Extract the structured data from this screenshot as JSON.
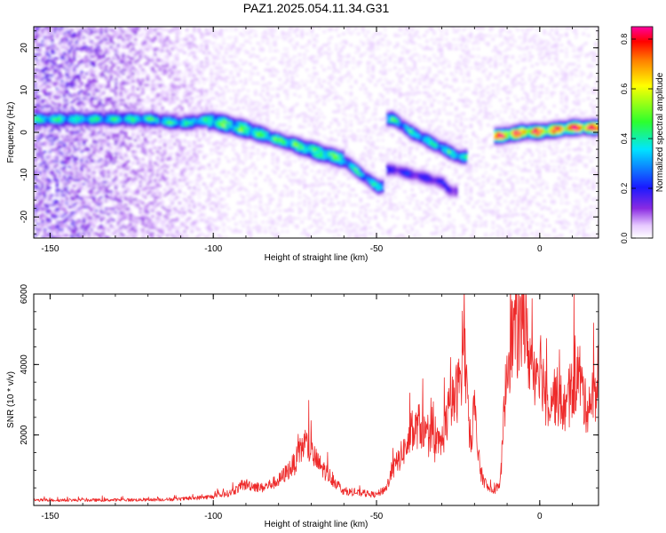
{
  "figure_title": "PAZ1.2025.054.11.34.G31",
  "colors": {
    "snr_line": "#ee2a2a",
    "axis": "#000000"
  },
  "chart_data": [
    {
      "type": "heatmap",
      "title": "PAZ1.2025.054.11.34.G31",
      "xlabel": "Height of straight line (km)",
      "ylabel": "Frequency (Hz)",
      "xlim": [
        -155,
        18
      ],
      "ylim": [
        -25,
        25
      ],
      "x_ticks": [
        -150,
        -100,
        -50,
        0
      ],
      "x_tick_labels": [
        "-150",
        "-100",
        "-50",
        "0"
      ],
      "y_ticks": [
        -20,
        -10,
        0,
        10,
        20
      ],
      "y_tick_labels": [
        "-20",
        "-10",
        "0",
        "10",
        "20"
      ],
      "colorbar": {
        "label": "Normalized spectral amplitude",
        "range": [
          0,
          0.85
        ],
        "ticks": [
          0,
          0.2,
          0.4,
          0.6,
          0.8
        ],
        "tick_labels": [
          "0.0",
          "0.2",
          "0.4",
          "0.6",
          "0.8"
        ],
        "colormap": "rainbow (white-purple-blue-cyan-green-yellow-red-magenta)"
      },
      "ridges": [
        {
          "x": [
            -155,
            -120,
            -110,
            -100,
            -90,
            -80,
            -70,
            -60,
            -55,
            -50
          ],
          "y": [
            3,
            3,
            2,
            3,
            1,
            -2,
            -5,
            -7,
            -10,
            -13
          ],
          "peak": 0.45
        },
        {
          "x": [
            -45,
            -40,
            -35,
            -30,
            -25
          ],
          "y": [
            3,
            0,
            -2,
            -4,
            -6
          ],
          "peak": 0.45
        },
        {
          "x": [
            -45,
            -40,
            -35,
            -30,
            -28
          ],
          "y": [
            -9,
            -10,
            -11,
            -12,
            -14
          ],
          "peak": 0.22
        },
        {
          "x": [
            -12,
            -5,
            0,
            5,
            10,
            18
          ],
          "y": [
            -1,
            0,
            0,
            0.5,
            1,
            1
          ],
          "peak": 0.85
        },
        {
          "x": [
            -100,
            -90,
            -80,
            -70,
            -62
          ],
          "y": [
            2,
            0,
            -2,
            -4,
            -6
          ],
          "peak": 0.5
        }
      ],
      "grid": false
    },
    {
      "type": "line",
      "xlabel": "Height of straight line (km)",
      "ylabel": "SNR (10 * v/v)",
      "xlim": [
        -155,
        18
      ],
      "ylim": [
        0,
        6000
      ],
      "x_ticks": [
        -150,
        -100,
        -50,
        0
      ],
      "x_tick_labels": [
        "-150",
        "-100",
        "-50",
        "0"
      ],
      "y_ticks": [
        2000,
        4000,
        6000
      ],
      "y_tick_labels": [
        "2000",
        "4000",
        "6000"
      ],
      "series": [
        {
          "color": "#ee2a2a",
          "x": [
            -155,
            -140,
            -120,
            -110,
            -100,
            -95,
            -90,
            -85,
            -80,
            -75,
            -72,
            -70,
            -68,
            -65,
            -62,
            -60,
            -55,
            -50,
            -47,
            -45,
            -42,
            -40,
            -37,
            -35,
            -32,
            -30,
            -28,
            -25,
            -23,
            -22,
            -21,
            -20,
            -19,
            -18,
            -16,
            -14,
            -12,
            -11,
            -10,
            -8,
            -6,
            -5,
            -4,
            -2,
            0,
            2,
            4,
            6,
            8,
            10,
            12,
            14,
            16,
            18
          ],
          "y": [
            150,
            150,
            160,
            180,
            250,
            350,
            600,
            500,
            700,
            1200,
            1800,
            1500,
            1200,
            900,
            600,
            400,
            350,
            300,
            500,
            1000,
            1500,
            1800,
            2300,
            2000,
            1600,
            1800,
            2600,
            3300,
            4500,
            2500,
            2000,
            2800,
            1500,
            900,
            500,
            400,
            700,
            2500,
            4000,
            5000,
            4800,
            5600,
            4600,
            3800,
            4200,
            3000,
            3200,
            3000,
            2700,
            3300,
            3800,
            2800,
            3000,
            3500
          ],
          "noise": 0.28
        }
      ],
      "grid": false
    }
  ]
}
